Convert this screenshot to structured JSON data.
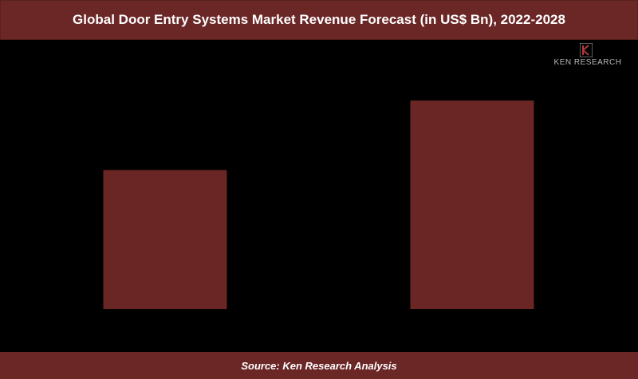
{
  "colors": {
    "banner": "#6b2626",
    "bar": "#692624",
    "background": "#000000"
  },
  "logo": {
    "text": "KEN RESEARCH",
    "icon": "ken-research-logo-icon"
  },
  "source": "Source: Ken Research Analysis",
  "chart_data": {
    "type": "bar",
    "title": "Global Door Entry Systems Market Revenue Forecast (in US$ Bn), 2022-2028",
    "categories": [
      "",
      ""
    ],
    "values": [
      1.0,
      1.5
    ],
    "xlabel": "",
    "ylabel": "",
    "ylim": [
      0,
      1.8
    ],
    "grid": false,
    "legend": "none"
  }
}
